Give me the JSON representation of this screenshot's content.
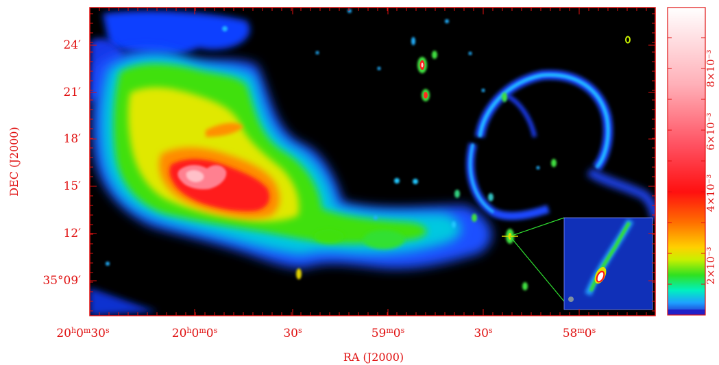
{
  "image": {
    "x_axis_title": "RA (J2000)",
    "y_axis_title": "DEC (J2000)",
    "x_ticks": [
      {
        "h": "20",
        "hsup": "h",
        "m": "0",
        "msup": "m",
        "s": "30",
        "ssup": "s"
      },
      {
        "h": "20",
        "hsup": "h",
        "m": "0",
        "msup": "m",
        "s": "0",
        "ssup": "s"
      },
      {
        "s": "30",
        "ssup": "s"
      },
      {
        "m": "59",
        "msup": "m",
        "s": "0",
        "ssup": "s"
      },
      {
        "s": "30",
        "ssup": "s"
      },
      {
        "m": "58",
        "msup": "m",
        "s": "0",
        "ssup": "s"
      }
    ],
    "y_ticks": [
      "24′",
      "21′",
      "18′",
      "15′",
      "12′",
      "35°09′"
    ],
    "colorbar": {
      "labels": [
        "2×10⁻³",
        "4×10⁻³",
        "6×10⁻³",
        "8×10⁻³"
      ],
      "gradient": [
        "#2020c8",
        "#1ea0ff",
        "#00f0c0",
        "#30e020",
        "#c8f000",
        "#ffd000",
        "#ff7000",
        "#ff1010",
        "#ff5060",
        "#ffb0b8",
        "#ffffff"
      ]
    },
    "colors": {
      "axis": "#e01010",
      "background_sky": "#000000",
      "inset_background": "#1030b8",
      "inset_line": "#30e030"
    },
    "features": [
      "large-nebula-emission",
      "shell-ring-emission",
      "point-sources",
      "zoom-inset"
    ]
  }
}
